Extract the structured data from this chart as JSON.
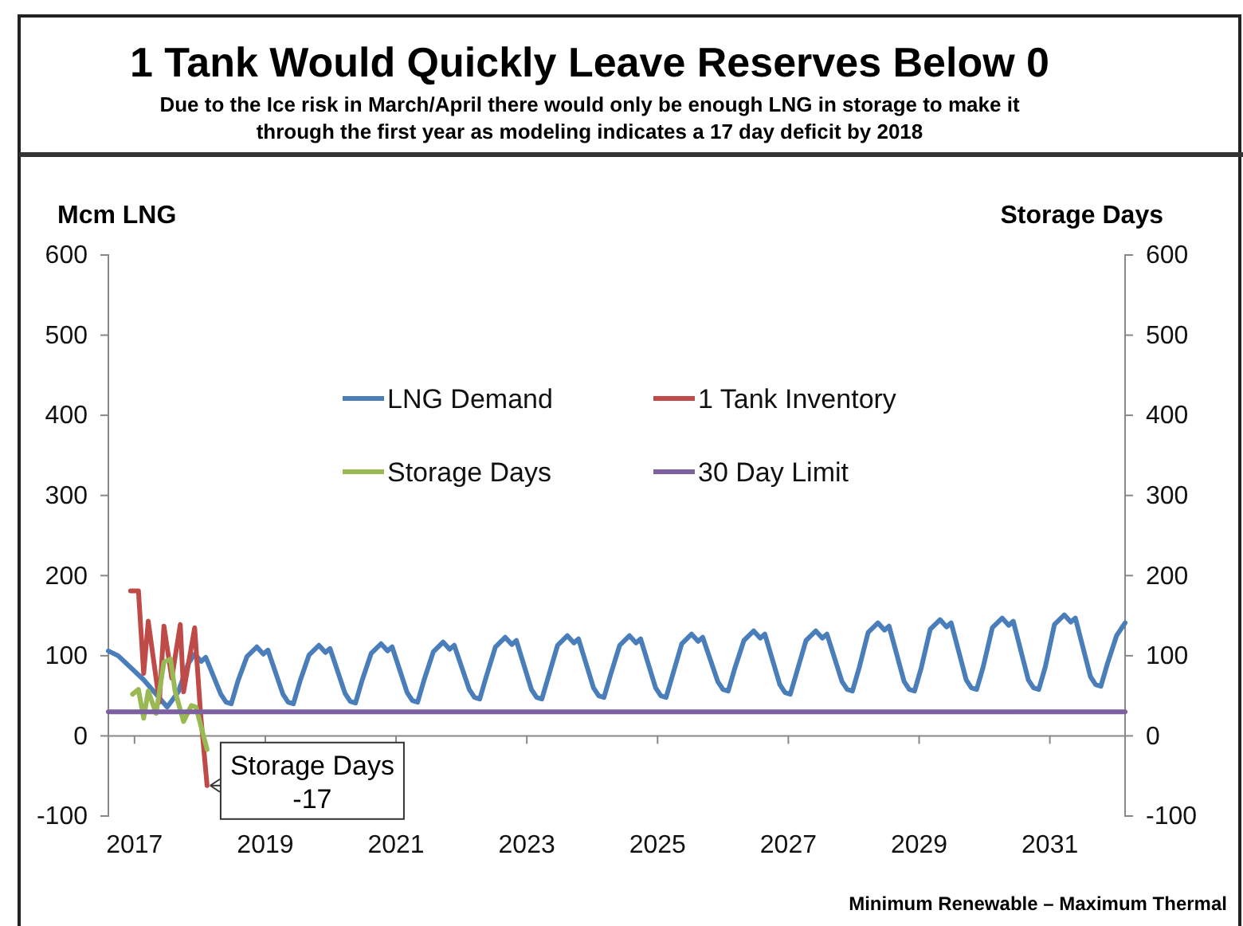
{
  "chart_data": {
    "type": "line",
    "title": "1 Tank Would Quickly Leave Reserves Below 0",
    "subtitle": "Due to the Ice risk in March/April there would only be enough LNG in storage to make it through the first year as modeling indicates a 17 day deficit by 2018",
    "ylabel": "Mcm LNG",
    "y2label": "Storage Days",
    "xlim": [
      2016.6,
      2032.15
    ],
    "xticks": [
      2017,
      2019,
      2021,
      2023,
      2025,
      2027,
      2029,
      2031
    ],
    "ylim": [
      -100,
      600
    ],
    "yticks": [
      -100,
      0,
      100,
      200,
      300,
      400,
      500,
      600
    ],
    "y2lim": [
      -100,
      600
    ],
    "y2ticks": [
      -100,
      0,
      100,
      200,
      300,
      400,
      500,
      600
    ],
    "grid": false,
    "legend": "top",
    "marker": "none",
    "line_style": "solid",
    "annotations": [
      {
        "text": "Storage Days\n-17",
        "x": 2018.11,
        "y": -62
      },
      "Minimum Renewable – Maximum Thermal"
    ],
    "series": [
      {
        "name": "LNG Demand",
        "color": "#4a7ebb",
        "x": [
          2016.6,
          2016.75,
          2017.14,
          2017.5,
          2017.67,
          2017.82,
          2017.92,
          2018.02,
          2018.09,
          2018.32,
          2018.4,
          2018.48,
          2018.58,
          2018.72,
          2018.87,
          2018.97,
          2019.04,
          2019.27,
          2019.35,
          2019.43,
          2019.53,
          2019.67,
          2019.82,
          2019.92,
          2019.99,
          2020.22,
          2020.3,
          2020.38,
          2020.48,
          2020.62,
          2020.77,
          2020.87,
          2020.94,
          2021.17,
          2021.25,
          2021.33,
          2021.43,
          2021.57,
          2021.72,
          2021.82,
          2021.89,
          2022.12,
          2022.2,
          2022.28,
          2022.38,
          2022.52,
          2022.67,
          2022.77,
          2022.84,
          2023.07,
          2023.15,
          2023.23,
          2023.33,
          2023.47,
          2023.62,
          2023.72,
          2023.79,
          2024.02,
          2024.1,
          2024.18,
          2024.28,
          2024.42,
          2024.57,
          2024.67,
          2024.74,
          2024.97,
          2025.05,
          2025.13,
          2025.23,
          2025.37,
          2025.52,
          2025.62,
          2025.69,
          2025.92,
          2026,
          2026.08,
          2026.18,
          2026.32,
          2026.47,
          2026.57,
          2026.64,
          2026.87,
          2026.95,
          2027.03,
          2027.13,
          2027.27,
          2027.42,
          2027.52,
          2027.59,
          2027.82,
          2027.9,
          2027.98,
          2028.08,
          2028.22,
          2028.37,
          2028.47,
          2028.54,
          2028.77,
          2028.85,
          2028.93,
          2029.03,
          2029.17,
          2029.32,
          2029.42,
          2029.49,
          2029.72,
          2029.8,
          2029.88,
          2029.98,
          2030.12,
          2030.27,
          2030.37,
          2030.44,
          2030.67,
          2030.75,
          2030.83,
          2030.93,
          2031.07,
          2031.22,
          2031.32,
          2031.39,
          2031.62,
          2031.7,
          2031.78,
          2031.88,
          2032.02,
          2032.15
        ],
        "values": [
          106,
          100,
          70,
          36,
          55,
          90,
          102,
          93,
          98,
          52,
          42,
          40,
          68,
          99,
          111,
          102,
          107,
          52,
          42,
          40,
          68,
          101,
          113,
          104,
          109,
          53,
          43,
          41,
          69,
          103,
          115,
          106,
          111,
          54,
          44,
          42,
          70,
          105,
          117,
          108,
          113,
          58,
          48,
          46,
          74,
          111,
          123,
          114,
          119,
          58,
          48,
          46,
          74,
          113,
          125,
          116,
          121,
          60,
          50,
          48,
          76,
          113,
          125,
          116,
          121,
          60,
          50,
          48,
          76,
          115,
          127,
          118,
          123,
          68,
          58,
          56,
          84,
          119,
          131,
          122,
          127,
          64,
          54,
          52,
          80,
          119,
          131,
          122,
          127,
          68,
          58,
          56,
          84,
          129,
          141,
          132,
          137,
          68,
          58,
          56,
          84,
          133,
          145,
          136,
          141,
          70,
          60,
          58,
          86,
          135,
          147,
          138,
          143,
          70,
          60,
          58,
          86,
          139,
          151,
          142,
          147,
          74,
          64,
          62,
          90,
          125,
          141
        ]
      },
      {
        "name": "1 Tank Inventory",
        "color": "#be4b48",
        "x": [
          2016.94,
          2017.06,
          2017.14,
          2017.21,
          2017.38,
          2017.45,
          2017.57,
          2017.7,
          2017.75,
          2017.92,
          2018.01,
          2018.11
        ],
        "values": [
          181,
          181,
          78,
          143,
          42,
          137,
          72,
          139,
          55,
          135,
          28,
          -62
        ]
      },
      {
        "name": "Storage Days",
        "color": "#98b954",
        "x": [
          2016.97,
          2017.06,
          2017.14,
          2017.21,
          2017.33,
          2017.45,
          2017.55,
          2017.62,
          2017.75,
          2017.87,
          2017.94,
          2018.11
        ],
        "values": [
          52,
          58,
          22,
          56,
          28,
          92,
          96,
          56,
          18,
          38,
          36,
          -17
        ]
      },
      {
        "name": "30 Day Limit",
        "color": "#7d60a0",
        "x": [
          2016.6,
          2032.15
        ],
        "values": [
          30,
          30
        ]
      }
    ]
  }
}
